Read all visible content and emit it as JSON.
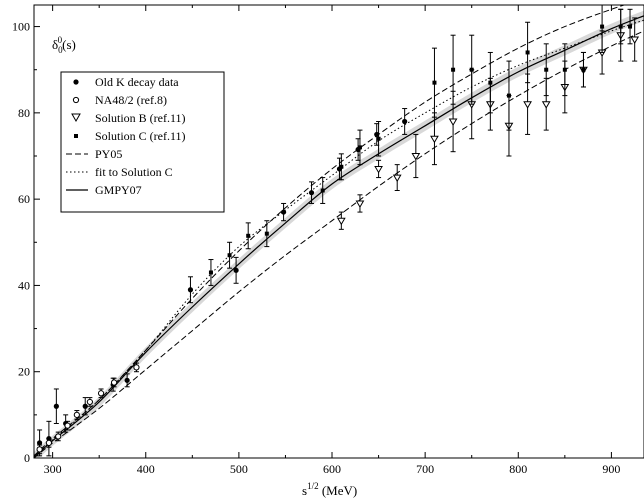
{
  "chart_data": {
    "type": "scatter",
    "xlabel_main": "s",
    "xlabel_sup": "1/2",
    "xlabel_unit": " (MeV)",
    "ylabel_main": "δ",
    "ylabel_sub": "0",
    "ylabel_sup": "0",
    "ylabel_arg": "(s)",
    "xlim": [
      280,
      935
    ],
    "ylim": [
      0,
      105
    ],
    "x_ticks": [
      300,
      400,
      500,
      600,
      700,
      800,
      900
    ],
    "y_ticks": [
      0,
      20,
      40,
      60,
      80,
      100
    ],
    "grid": false,
    "legend_position": "top-left",
    "legend": [
      {
        "label": "Old K decay data",
        "marker": "filled-circle"
      },
      {
        "label": "NA48/2 (ref.8)",
        "marker": "open-circle"
      },
      {
        "label": "Solution B  (ref.11)",
        "marker": "open-triangle-down"
      },
      {
        "label": "Solution C  (ref.11)",
        "marker": "filled-square"
      },
      {
        "label": "PY05",
        "line": "dashed"
      },
      {
        "label": "fit to Solution C",
        "line": "dotted"
      },
      {
        "label": "GMPY07",
        "line": "solid"
      }
    ],
    "points": {
      "old_k_decay": [
        {
          "x": 286,
          "y": 3.5,
          "err": 3
        },
        {
          "x": 296,
          "y": 4.5,
          "err": 4
        },
        {
          "x": 304,
          "y": 12,
          "err": 4
        },
        {
          "x": 314,
          "y": 8,
          "err": 2
        },
        {
          "x": 335,
          "y": 12,
          "err": 2
        },
        {
          "x": 365,
          "y": 17,
          "err": 1.5
        },
        {
          "x": 380,
          "y": 18,
          "err": 1.5
        },
        {
          "x": 448,
          "y": 39,
          "err": 3
        },
        {
          "x": 497,
          "y": 43.5,
          "err": 3
        },
        {
          "x": 548,
          "y": 57,
          "err": 2
        },
        {
          "x": 578,
          "y": 61.5,
          "err": 2.5
        },
        {
          "x": 608,
          "y": 67,
          "err": 2.5
        },
        {
          "x": 628,
          "y": 71.5,
          "err": 2.5
        },
        {
          "x": 648,
          "y": 75,
          "err": 2.5
        },
        {
          "x": 678,
          "y": 78,
          "err": 3
        }
      ],
      "na48": [
        {
          "x": 286,
          "y": 2,
          "err": 1
        },
        {
          "x": 296,
          "y": 3.5,
          "err": 1
        },
        {
          "x": 306,
          "y": 5,
          "err": 1
        },
        {
          "x": 316,
          "y": 7.5,
          "err": 1
        },
        {
          "x": 326,
          "y": 10,
          "err": 1
        },
        {
          "x": 340,
          "y": 13,
          "err": 1
        },
        {
          "x": 352,
          "y": 15,
          "err": 1
        },
        {
          "x": 366,
          "y": 17.5,
          "err": 1
        },
        {
          "x": 390,
          "y": 21,
          "err": 1
        }
      ],
      "solution_b": [
        {
          "x": 610,
          "y": 55,
          "err": 2
        },
        {
          "x": 630,
          "y": 59,
          "err": 2
        },
        {
          "x": 650,
          "y": 67,
          "err": 2
        },
        {
          "x": 670,
          "y": 65,
          "err": 3
        },
        {
          "x": 690,
          "y": 70,
          "err": 5
        },
        {
          "x": 710,
          "y": 74,
          "err": 6
        },
        {
          "x": 730,
          "y": 78,
          "err": 7
        },
        {
          "x": 750,
          "y": 82,
          "err": 8
        },
        {
          "x": 770,
          "y": 82,
          "err": 6
        },
        {
          "x": 790,
          "y": 77,
          "err": 7
        },
        {
          "x": 810,
          "y": 82,
          "err": 7
        },
        {
          "x": 830,
          "y": 82,
          "err": 6
        },
        {
          "x": 850,
          "y": 86,
          "err": 6
        },
        {
          "x": 870,
          "y": 90,
          "err": 4
        },
        {
          "x": 890,
          "y": 94,
          "err": 5
        },
        {
          "x": 910,
          "y": 98,
          "err": 6
        },
        {
          "x": 925,
          "y": 97,
          "err": 5
        }
      ],
      "solution_c": [
        {
          "x": 470,
          "y": 43,
          "err": 3
        },
        {
          "x": 490,
          "y": 47,
          "err": 3
        },
        {
          "x": 510,
          "y": 51.5,
          "err": 3
        },
        {
          "x": 530,
          "y": 52,
          "err": 3
        },
        {
          "x": 590,
          "y": 62,
          "err": 3
        },
        {
          "x": 610,
          "y": 67.5,
          "err": 3
        },
        {
          "x": 630,
          "y": 72,
          "err": 4
        },
        {
          "x": 650,
          "y": 74,
          "err": 4
        },
        {
          "x": 710,
          "y": 87,
          "err": 8
        },
        {
          "x": 730,
          "y": 90,
          "err": 8
        },
        {
          "x": 750,
          "y": 90,
          "err": 8
        },
        {
          "x": 770,
          "y": 87,
          "err": 7
        },
        {
          "x": 790,
          "y": 84,
          "err": 8
        },
        {
          "x": 810,
          "y": 94,
          "err": 7
        },
        {
          "x": 830,
          "y": 90,
          "err": 6
        },
        {
          "x": 850,
          "y": 90,
          "err": 6
        },
        {
          "x": 870,
          "y": 90,
          "err": 4
        },
        {
          "x": 890,
          "y": 100,
          "err": 6
        },
        {
          "x": 910,
          "y": 100,
          "err": 4
        },
        {
          "x": 920,
          "y": 100,
          "err": 4
        }
      ]
    },
    "curves": {
      "py05_upper": [
        [
          280,
          0.5
        ],
        [
          300,
          4.5
        ],
        [
          350,
          13.5
        ],
        [
          400,
          25
        ],
        [
          450,
          37
        ],
        [
          500,
          48
        ],
        [
          550,
          58
        ],
        [
          600,
          67
        ],
        [
          650,
          75
        ],
        [
          700,
          82.5
        ],
        [
          750,
          89
        ],
        [
          800,
          95
        ],
        [
          850,
          100
        ],
        [
          900,
          104
        ],
        [
          935,
          106.5
        ]
      ],
      "py05_lower": [
        [
          280,
          0
        ],
        [
          300,
          3.5
        ],
        [
          350,
          11.5
        ],
        [
          400,
          20.5
        ],
        [
          450,
          29.5
        ],
        [
          500,
          38.5
        ],
        [
          550,
          47
        ],
        [
          600,
          55
        ],
        [
          650,
          63
        ],
        [
          700,
          70.5
        ],
        [
          750,
          77.5
        ],
        [
          800,
          84
        ],
        [
          850,
          90
        ],
        [
          900,
          95.5
        ],
        [
          935,
          99
        ]
      ],
      "fit_solution_c": [
        [
          280,
          0.3
        ],
        [
          300,
          4.2
        ],
        [
          350,
          13.5
        ],
        [
          400,
          25
        ],
        [
          450,
          38
        ],
        [
          500,
          49
        ],
        [
          550,
          57.5
        ],
        [
          600,
          65.5
        ],
        [
          650,
          73.5
        ],
        [
          700,
          80
        ],
        [
          750,
          86
        ],
        [
          800,
          91
        ],
        [
          850,
          95
        ],
        [
          900,
          99
        ],
        [
          935,
          101.5
        ]
      ],
      "gmpy07": [
        [
          280,
          0.2
        ],
        [
          300,
          4
        ],
        [
          350,
          13
        ],
        [
          400,
          24.5
        ],
        [
          450,
          35
        ],
        [
          500,
          45
        ],
        [
          550,
          54.5
        ],
        [
          600,
          63.5
        ],
        [
          650,
          70.5
        ],
        [
          700,
          77
        ],
        [
          750,
          83.5
        ],
        [
          800,
          89.5
        ],
        [
          850,
          94.5
        ],
        [
          900,
          99.5
        ],
        [
          935,
          102.5
        ]
      ],
      "gmpy07_band_halfwidth": 1.2
    }
  }
}
